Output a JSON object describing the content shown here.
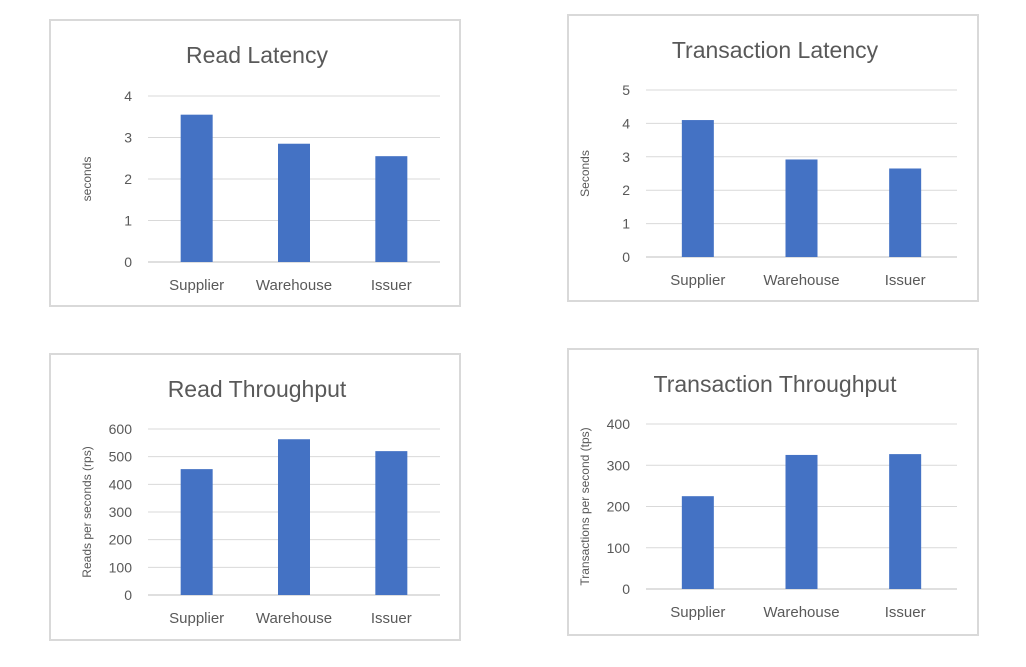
{
  "chart_data": [
    {
      "type": "bar",
      "title": "Read Latency",
      "xlabel": "",
      "ylabel": "seconds",
      "categories": [
        "Supplier",
        "Warehouse",
        "Issuer"
      ],
      "values": [
        3.55,
        2.85,
        2.55
      ],
      "ylim": [
        0,
        4
      ],
      "yticks": [
        0,
        1,
        2,
        3,
        4
      ],
      "grid": true,
      "color": "#4472c4"
    },
    {
      "type": "bar",
      "title": "Transaction Latency",
      "xlabel": "",
      "ylabel": "Seconds",
      "categories": [
        "Supplier",
        "Warehouse",
        "Issuer"
      ],
      "values": [
        4.1,
        2.92,
        2.65
      ],
      "ylim": [
        0,
        5
      ],
      "yticks": [
        0,
        1,
        2,
        3,
        4,
        5
      ],
      "grid": true,
      "color": "#4472c4"
    },
    {
      "type": "bar",
      "title": "Read Throughput",
      "xlabel": "",
      "ylabel": "Reads per seconds (rps)",
      "categories": [
        "Supplier",
        "Warehouse",
        "Issuer"
      ],
      "values": [
        455,
        563,
        520
      ],
      "ylim": [
        0,
        600
      ],
      "yticks": [
        0,
        100,
        200,
        300,
        400,
        500,
        600
      ],
      "grid": true,
      "color": "#4472c4"
    },
    {
      "type": "bar",
      "title": "Transaction Throughput",
      "xlabel": "",
      "ylabel": "Transactions per second (tps)",
      "categories": [
        "Supplier",
        "Warehouse",
        "Issuer"
      ],
      "values": [
        225,
        325,
        327
      ],
      "ylim": [
        0,
        400
      ],
      "yticks": [
        0,
        100,
        200,
        300,
        400
      ],
      "grid": true,
      "color": "#4472c4"
    }
  ]
}
